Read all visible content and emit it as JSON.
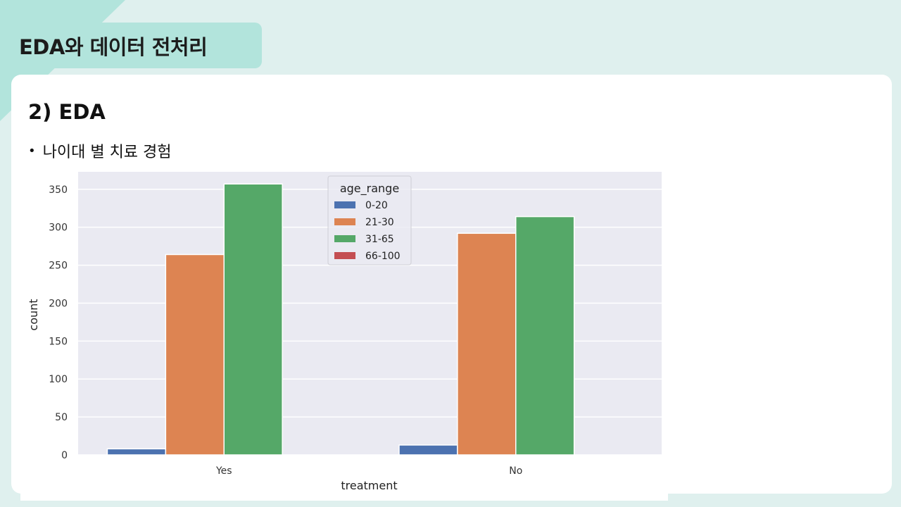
{
  "slide": {
    "section_title": "EDA와 데이터 전처리",
    "heading": "2) EDA",
    "bullet": "나이대 별 치료 경험"
  },
  "colors": {
    "tab": "#b2e4dc",
    "background": "#dff0ee",
    "plot_bg": "#eaeaf2"
  },
  "chart_data": {
    "type": "bar",
    "categories": [
      "Yes",
      "No"
    ],
    "series": [
      {
        "name": "0-20",
        "color": "#4c72b0",
        "values": [
          8,
          13
        ]
      },
      {
        "name": "21-30",
        "color": "#dd8452",
        "values": [
          264,
          292
        ]
      },
      {
        "name": "31-65",
        "color": "#55a868",
        "values": [
          357,
          314
        ]
      },
      {
        "name": "66-100",
        "color": "#c44e52",
        "values": [
          0,
          0
        ]
      }
    ],
    "xlabel": "treatment",
    "ylabel": "count",
    "ylim": [
      0,
      373
    ],
    "yticks": [
      0,
      50,
      100,
      150,
      200,
      250,
      300,
      350
    ],
    "legend_title": "age_range",
    "legend_position": "top-center",
    "grid": true
  }
}
